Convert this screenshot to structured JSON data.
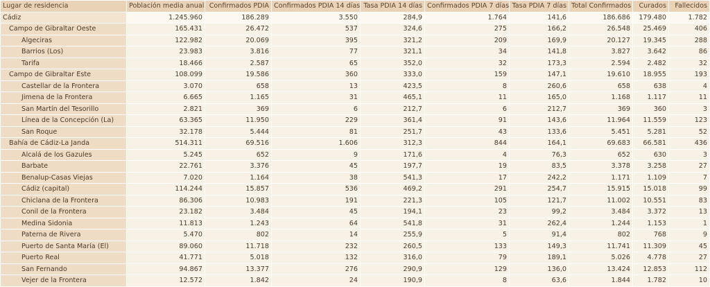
{
  "headers": [
    "Lugar de residencia",
    "Población media anual",
    "Confirmados PDIA",
    "Confirmados PDIA 14 días",
    "Tasa PDIA 14 días",
    "Confirmados PDIA 7 días",
    "Tasa PDIA 7 días",
    "Total Confirmados",
    "Curados",
    "Fallecidos"
  ],
  "rows": [
    {
      "level": 0,
      "cells": [
        "Cádiz",
        "1.245.960",
        "186.289",
        "3.550",
        "284,9",
        "1.764",
        "141,6",
        "186.686",
        "179.480",
        "1.782"
      ]
    },
    {
      "level": 1,
      "cells": [
        "Campo de Gibraltar Oeste",
        "165.431",
        "26.472",
        "537",
        "324,6",
        "275",
        "166,2",
        "26.548",
        "25.469",
        "406"
      ]
    },
    {
      "level": 2,
      "cells": [
        "Algeciras",
        "122.982",
        "20.069",
        "395",
        "321,2",
        "209",
        "169,9",
        "20.127",
        "19.345",
        "288"
      ]
    },
    {
      "level": 2,
      "cells": [
        "Barrios (Los)",
        "23.983",
        "3.816",
        "77",
        "321,1",
        "34",
        "141,8",
        "3.827",
        "3.642",
        "86"
      ]
    },
    {
      "level": 2,
      "cells": [
        "Tarifa",
        "18.466",
        "2.587",
        "65",
        "352,0",
        "32",
        "173,3",
        "2.594",
        "2.482",
        "32"
      ]
    },
    {
      "level": 1,
      "cells": [
        "Campo de Gibraltar Este",
        "108.099",
        "19.586",
        "360",
        "333,0",
        "159",
        "147,1",
        "19.610",
        "18.955",
        "193"
      ]
    },
    {
      "level": 2,
      "cells": [
        "Castellar de la Frontera",
        "3.070",
        "658",
        "13",
        "423,5",
        "8",
        "260,6",
        "658",
        "638",
        "4"
      ]
    },
    {
      "level": 2,
      "cells": [
        "Jimena de la Frontera",
        "6.665",
        "1.165",
        "31",
        "465,1",
        "11",
        "165,0",
        "1.168",
        "1.117",
        "11"
      ]
    },
    {
      "level": 2,
      "cells": [
        "San Martín del Tesorillo",
        "2.821",
        "369",
        "6",
        "212,7",
        "6",
        "212,7",
        "369",
        "360",
        "3"
      ]
    },
    {
      "level": 2,
      "cells": [
        "Línea de la Concepción (La)",
        "63.365",
        "11.950",
        "229",
        "361,4",
        "91",
        "143,6",
        "11.964",
        "11.559",
        "123"
      ]
    },
    {
      "level": 2,
      "cells": [
        "San Roque",
        "32.178",
        "5.444",
        "81",
        "251,7",
        "43",
        "133,6",
        "5.451",
        "5.281",
        "52"
      ]
    },
    {
      "level": 1,
      "cells": [
        "Bahía de Cádiz-La Janda",
        "514.311",
        "69.516",
        "1.606",
        "312,3",
        "844",
        "164,1",
        "69.683",
        "66.581",
        "436"
      ]
    },
    {
      "level": 2,
      "cells": [
        "Alcalá de los Gazules",
        "5.245",
        "652",
        "9",
        "171,6",
        "4",
        "76,3",
        "652",
        "630",
        "3"
      ]
    },
    {
      "level": 2,
      "cells": [
        "Barbate",
        "22.761",
        "3.376",
        "45",
        "197,7",
        "19",
        "83,5",
        "3.378",
        "3.258",
        "27"
      ]
    },
    {
      "level": 2,
      "cells": [
        "Benalup-Casas Viejas",
        "7.020",
        "1.164",
        "38",
        "541,3",
        "17",
        "242,2",
        "1.171",
        "1.109",
        "7"
      ]
    },
    {
      "level": 2,
      "cells": [
        "Cádiz (capital)",
        "114.244",
        "15.857",
        "536",
        "469,2",
        "291",
        "254,7",
        "15.915",
        "15.018",
        "99"
      ]
    },
    {
      "level": 2,
      "cells": [
        "Chiclana de la Frontera",
        "86.306",
        "10.983",
        "191",
        "221,3",
        "105",
        "121,7",
        "11.002",
        "10.551",
        "83"
      ]
    },
    {
      "level": 2,
      "cells": [
        "Conil de la Frontera",
        "23.182",
        "3.484",
        "45",
        "194,1",
        "23",
        "99,2",
        "3.484",
        "3.372",
        "13"
      ]
    },
    {
      "level": 2,
      "cells": [
        "Medina Sidonia",
        "11.813",
        "1.243",
        "64",
        "541,8",
        "31",
        "262,4",
        "1.244",
        "1.153",
        "1"
      ]
    },
    {
      "level": 2,
      "cells": [
        "Paterna de Rivera",
        "5.470",
        "802",
        "14",
        "255,9",
        "5",
        "91,4",
        "802",
        "768",
        "9"
      ]
    },
    {
      "level": 2,
      "cells": [
        "Puerto de Santa María (El)",
        "89.060",
        "11.718",
        "232",
        "260,5",
        "133",
        "149,3",
        "11.741",
        "11.309",
        "45"
      ]
    },
    {
      "level": 2,
      "cells": [
        "Puerto Real",
        "41.771",
        "5.018",
        "132",
        "316,0",
        "79",
        "189,1",
        "5.026",
        "4.778",
        "27"
      ]
    },
    {
      "level": 2,
      "cells": [
        "San Fernando",
        "94.867",
        "13.377",
        "276",
        "290,9",
        "129",
        "136,0",
        "13.424",
        "12.853",
        "112"
      ]
    },
    {
      "level": 2,
      "cells": [
        "Vejer de la Frontera",
        "12.572",
        "1.842",
        "24",
        "190,9",
        "8",
        "63,6",
        "1.844",
        "1.782",
        "10"
      ]
    }
  ]
}
